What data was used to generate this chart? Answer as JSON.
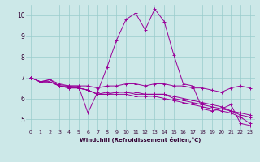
{
  "xlabel": "Windchill (Refroidissement éolien,°C)",
  "x": [
    0,
    1,
    2,
    3,
    4,
    5,
    6,
    7,
    8,
    9,
    10,
    11,
    12,
    13,
    14,
    15,
    16,
    17,
    18,
    19,
    20,
    21,
    22,
    23
  ],
  "lines": [
    [
      7.0,
      6.8,
      6.9,
      6.6,
      6.6,
      6.6,
      5.3,
      6.3,
      7.5,
      8.8,
      9.8,
      10.1,
      9.3,
      10.3,
      9.7,
      8.1,
      6.7,
      6.6,
      5.5,
      5.4,
      5.5,
      5.7,
      4.8,
      4.7
    ],
    [
      7.0,
      6.8,
      6.9,
      6.7,
      6.6,
      6.6,
      6.6,
      6.5,
      6.6,
      6.6,
      6.7,
      6.7,
      6.6,
      6.7,
      6.7,
      6.6,
      6.6,
      6.5,
      6.5,
      6.4,
      6.3,
      6.5,
      6.6,
      6.5
    ],
    [
      7.0,
      6.8,
      6.8,
      6.6,
      6.5,
      6.5,
      6.4,
      6.2,
      6.3,
      6.3,
      6.3,
      6.3,
      6.2,
      6.2,
      6.2,
      6.1,
      6.0,
      5.9,
      5.8,
      5.7,
      5.6,
      5.4,
      5.3,
      5.2
    ],
    [
      7.0,
      6.8,
      6.8,
      6.6,
      6.6,
      6.5,
      6.4,
      6.2,
      6.2,
      6.3,
      6.3,
      6.2,
      6.2,
      6.2,
      6.2,
      6.0,
      5.9,
      5.8,
      5.7,
      5.6,
      5.5,
      5.4,
      5.2,
      5.1
    ],
    [
      7.0,
      6.8,
      6.8,
      6.6,
      6.5,
      6.5,
      6.4,
      6.2,
      6.2,
      6.2,
      6.2,
      6.1,
      6.1,
      6.1,
      6.0,
      5.9,
      5.8,
      5.7,
      5.6,
      5.5,
      5.4,
      5.3,
      5.1,
      4.8
    ]
  ],
  "line_color": "#990099",
  "bg_color": "#cce8e8",
  "grid_color": "#99cccc",
  "ylim": [
    4.5,
    10.5
  ],
  "yticks": [
    5,
    6,
    7,
    8,
    9,
    10
  ],
  "xlim": [
    -0.5,
    23.5
  ],
  "marker": "+"
}
